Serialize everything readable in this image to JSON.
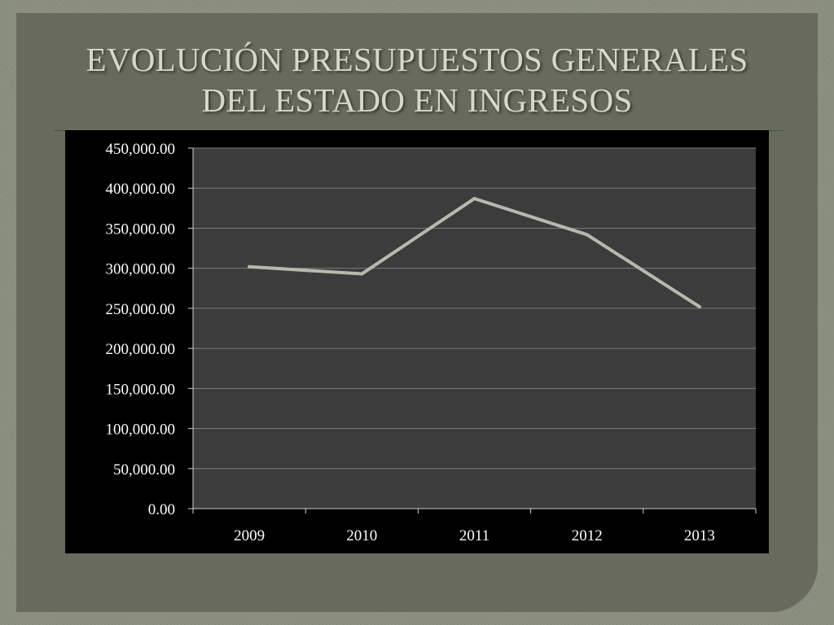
{
  "slide": {
    "title_line1": "EVOLUCIÓN PRESUPUESTOS GENERALES",
    "title_line2": "DEL ESTADO EN INGRESOS"
  },
  "colors": {
    "slide_background": "#676a5c",
    "outer_background": "#8a8f7d",
    "chart_background": "#000000",
    "plot_area": "#3c3c3c",
    "series_line": "#b8b8ad",
    "title_text": "#d6d8ca"
  },
  "chart_data": {
    "type": "line",
    "title": "",
    "xlabel": "",
    "ylabel": "",
    "categories": [
      "2009",
      "2010",
      "2011",
      "2012",
      "2013"
    ],
    "series": [
      {
        "values": [
          302000,
          293000,
          387000,
          342000,
          252000
        ]
      }
    ],
    "ylim": [
      0,
      450000
    ],
    "yticks": [
      0,
      50000,
      100000,
      150000,
      200000,
      250000,
      300000,
      350000,
      400000,
      450000
    ],
    "ytick_labels": [
      "0.00",
      "50,000.00",
      "100,000.00",
      "150,000.00",
      "200,000.00",
      "250,000.00",
      "300,000.00",
      "350,000.00",
      "400,000.00",
      "450,000.00"
    ],
    "grid": true,
    "legend": "none"
  }
}
